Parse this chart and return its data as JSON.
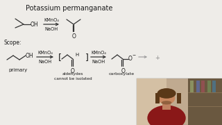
{
  "title": "Potassium permanganate",
  "background_color": "#eeece8",
  "text_color": "#1a1a1a",
  "scope_label": "Scope:",
  "primary_label": "primary",
  "aldehydes_label": "aldehydes\ncannot be isolated",
  "carboxylate_label": "carboxylate",
  "reagent1": "KMnO₄",
  "reagent2": "NaOH",
  "webcam_bg": "#b8a898",
  "webcam_shelf": "#7a6855",
  "webcam_person": "#7a1a1a",
  "webcam_face": "#c49070",
  "webcam_hair": "#3a2010"
}
